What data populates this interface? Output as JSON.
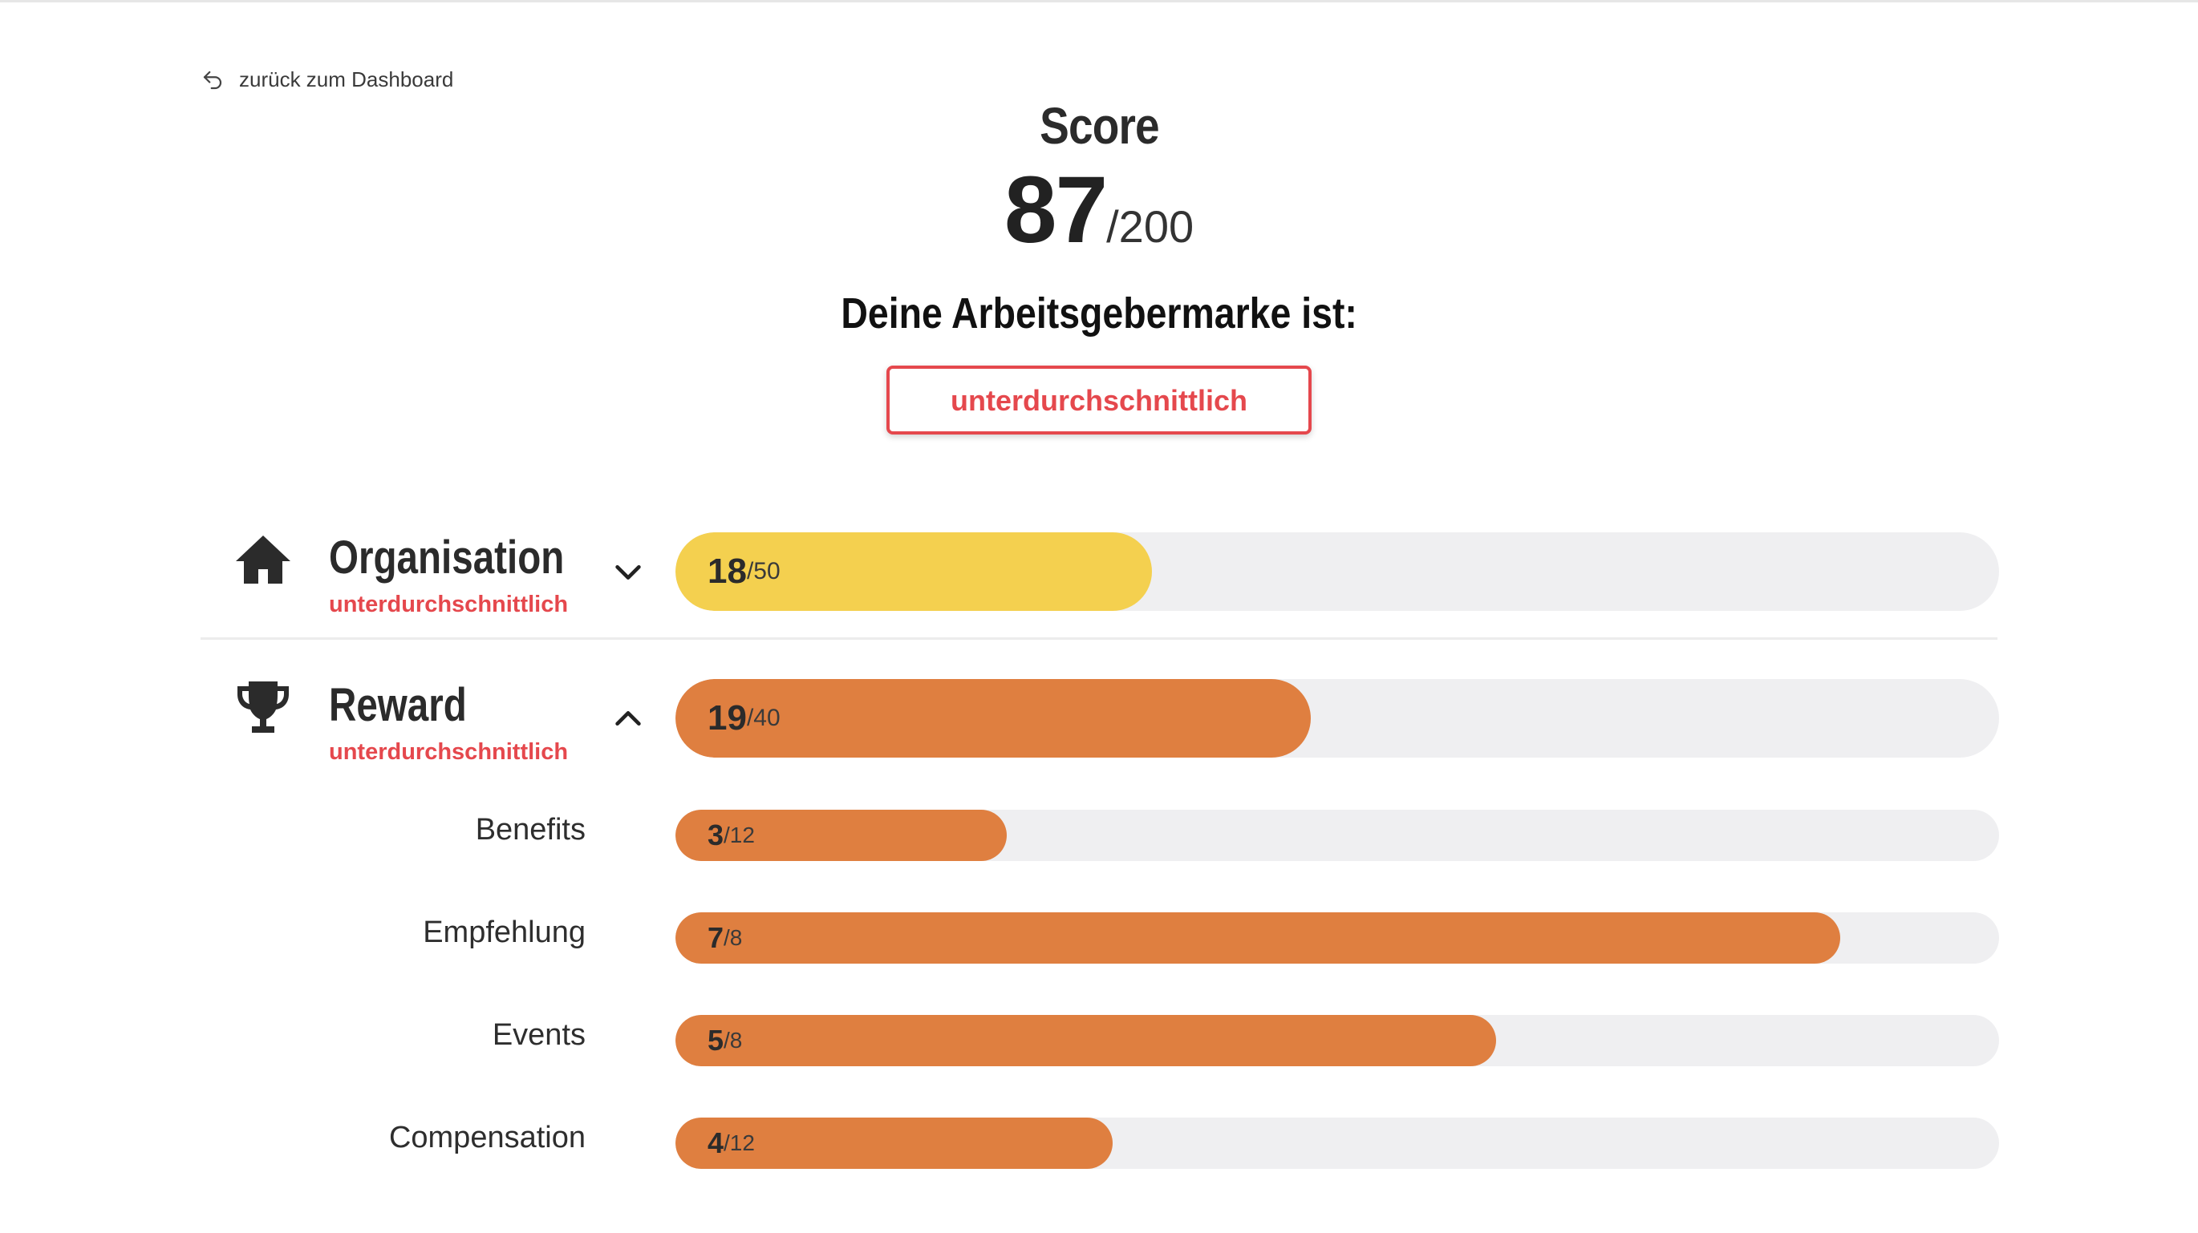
{
  "back_link": {
    "label": "zurück zum Dashboard"
  },
  "score": {
    "title": "Score",
    "value": "87",
    "max": "/200"
  },
  "brand": {
    "label": "Deine Arbeitsgebermarke ist:",
    "rating": "unterdurchschnittlich"
  },
  "categories": [
    {
      "name": "Organisation",
      "status": "unterdurchschnittlich",
      "icon": "house-icon",
      "score": "18",
      "max": "/50",
      "fraction": 0.36,
      "color": "#f4d04f",
      "expanded": false
    },
    {
      "name": "Reward",
      "status": "unterdurchschnittlich",
      "icon": "trophy-icon",
      "score": "19",
      "max": "/40",
      "fraction": 0.48,
      "color": "#df7f40",
      "expanded": true,
      "subcategories": [
        {
          "name": "Benefits",
          "score": "3",
          "max": "/12",
          "fraction": 0.25
        },
        {
          "name": "Empfehlung",
          "score": "7",
          "max": "/8",
          "fraction": 0.88
        },
        {
          "name": "Events",
          "score": "5",
          "max": "/8",
          "fraction": 0.62
        },
        {
          "name": "Compensation",
          "score": "4",
          "max": "/12",
          "fraction": 0.33
        }
      ]
    }
  ]
}
